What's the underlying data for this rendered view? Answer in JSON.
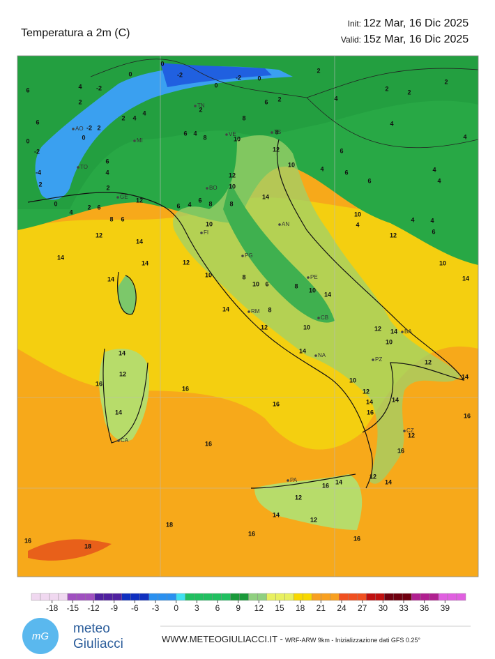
{
  "header": {
    "title": "Temperatura a 2m   (C)",
    "init_label": "Init:",
    "init": "12z Mar, 16 Dic 2025",
    "valid_label": "Valid:",
    "valid": "15z Mar, 16 Dic 2025"
  },
  "map": {
    "cities": [
      "AO",
      "TO",
      "MI",
      "TN",
      "VE",
      "TS",
      "GE",
      "BO",
      "FI",
      "AN",
      "PG",
      "PE",
      "RM",
      "CB",
      "NA",
      "BA",
      "PZ",
      "CZ",
      "PA",
      "CA"
    ],
    "temperatures": [
      6,
      4,
      -2,
      0,
      0,
      -2,
      0,
      -2,
      0,
      2,
      2,
      2,
      2,
      6,
      2,
      0,
      -2,
      -4,
      2,
      0,
      4,
      2,
      6,
      -2,
      2,
      0,
      6,
      4,
      2,
      4,
      4,
      2,
      6,
      4,
      8,
      2,
      8,
      6,
      2,
      4,
      4,
      8,
      10,
      12,
      10,
      4,
      6,
      6,
      6,
      4,
      4,
      4,
      12,
      10,
      14,
      8,
      8,
      6,
      4,
      6,
      8,
      6,
      12,
      10,
      12,
      14,
      14,
      14,
      12,
      14,
      10,
      8,
      6,
      10,
      8,
      10,
      14,
      14,
      8,
      12,
      10,
      10,
      4,
      4,
      4,
      6,
      12,
      10,
      14,
      12,
      14,
      10,
      12,
      14,
      14,
      12,
      16,
      16,
      14,
      16,
      14,
      16,
      14,
      16,
      12,
      16,
      16,
      12,
      14,
      14,
      16,
      12,
      12,
      14,
      16,
      18,
      16,
      16,
      18,
      10,
      12,
      14
    ]
  },
  "colorbar": {
    "ticks": [
      -18,
      -15,
      -12,
      -9,
      -6,
      -3,
      0,
      3,
      6,
      9,
      12,
      15,
      18,
      21,
      24,
      27,
      30,
      33,
      36,
      39
    ],
    "lim": [
      -21,
      42
    ]
  },
  "footer": {
    "logo_top": "meteo",
    "logo_bottom": "Giuliacci",
    "site": "WWW.METEOGIULIACCI.IT -",
    "model": "WRF-ARW 9km - Inizializzazione dati GFS 0.25°"
  }
}
